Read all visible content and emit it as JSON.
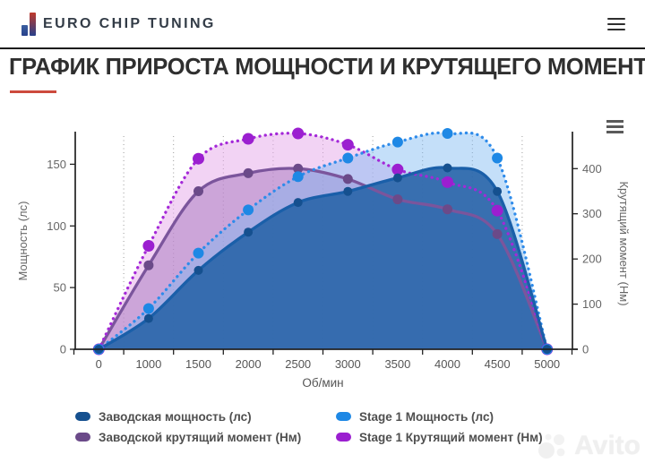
{
  "header": {
    "brand": "EURO CHIP TUNING"
  },
  "page": {
    "title": "ГРАФИК ПРИРОСТА МОЩНОСТИ И КРУТЯЩЕГО МОМЕНТА"
  },
  "watermark": {
    "text": "Avito"
  },
  "chart_data": {
    "type": "line",
    "title": "",
    "categories": [
      "0",
      "1000",
      "1500",
      "2000",
      "2500",
      "3000",
      "3500",
      "4000",
      "4500",
      "5000"
    ],
    "xlabel": "Об/мин",
    "ylabel_left": "Мощность (лс)",
    "ylabel_right": "Крутящий момент (Нм)",
    "y_left_ticks": [
      0,
      50,
      100,
      150
    ],
    "y_right_ticks": [
      0,
      100,
      200,
      300,
      400
    ],
    "grid": "vertical-dotted",
    "legend_position": "bottom",
    "series": [
      {
        "name": "Заводская мощность (лс)",
        "axis": "left",
        "units": "лс",
        "line_style": "solid",
        "color": "#1a5fa9",
        "marker_color": "#15508f",
        "fill": "rgba(41,101,168,0.9)",
        "marker_radius": 5,
        "values": [
          0,
          25,
          64,
          95,
          119,
          128,
          139,
          147,
          128,
          0
        ]
      },
      {
        "name": "Заводской крутящий момент (Нм)",
        "axis": "right",
        "units": "Нм",
        "line_style": "solid",
        "color": "#7b559c",
        "marker_color": "#6b4a89",
        "fill": "rgba(164,116,188,0.48)",
        "marker_radius": 5.5,
        "values": [
          0,
          186,
          350,
          390,
          400,
          377,
          332,
          310,
          255,
          0
        ]
      },
      {
        "name": "Stage 1 Мощность (лс)",
        "axis": "left",
        "units": "лс",
        "line_style": "dotted",
        "color": "#2e8bea",
        "marker_color": "#1e88e5",
        "fill": "rgba(125,183,242,0.45)",
        "marker_radius": 6,
        "values": [
          0,
          33,
          78,
          113,
          140,
          155,
          168,
          175,
          155,
          0
        ]
      },
      {
        "name": "Stage 1 Крутящий момент (Нм)",
        "axis": "right",
        "units": "Нм",
        "line_style": "dotted",
        "color": "#a428d8",
        "marker_color": "#9b1fd0",
        "fill": "rgba(229,168,234,0.5)",
        "marker_radius": 6.5,
        "values": [
          0,
          229,
          422,
          466,
          478,
          453,
          398,
          370,
          307,
          0
        ]
      }
    ]
  }
}
